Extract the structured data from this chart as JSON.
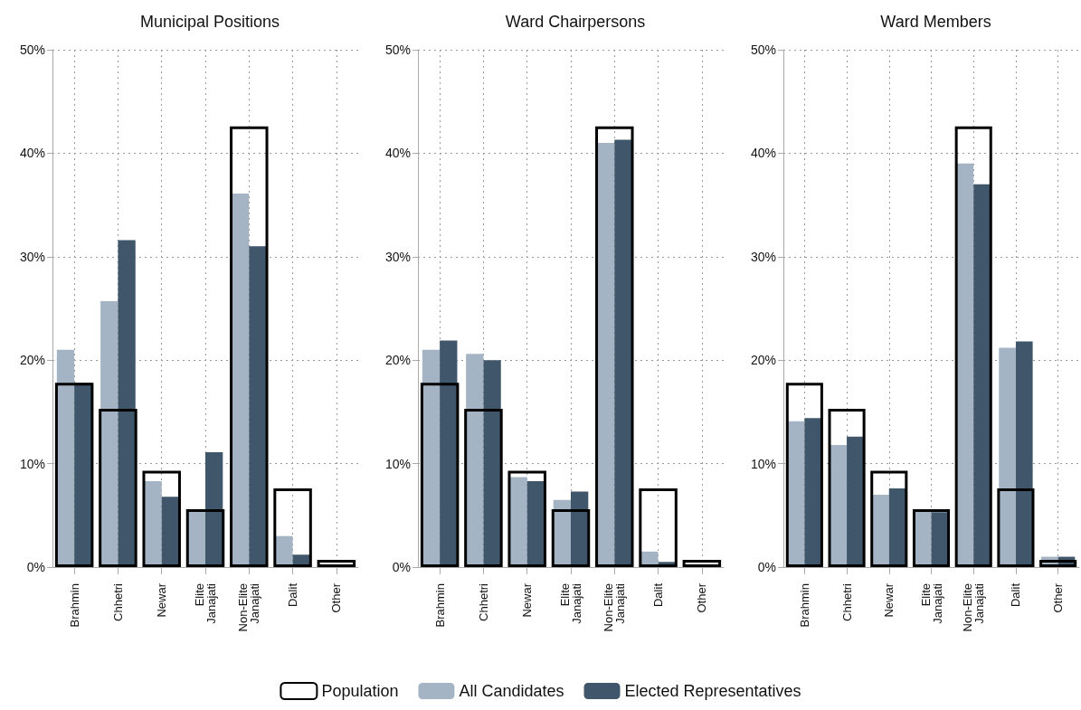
{
  "chart_data": [
    {
      "type": "bar",
      "title": "Municipal Positions",
      "categories": [
        "Brahmin",
        "Chhetri",
        "Newar",
        "Elite Janajati",
        "Non-Elite Janajati",
        "Dalit",
        "Other"
      ],
      "series": [
        {
          "color": "#000000",
          "values": [
            17.8,
            15.3,
            9.3,
            5.6,
            42.6,
            7.6,
            0.7
          ]
        },
        {
          "color": "#a5b4c4",
          "values": [
            21.0,
            25.7,
            8.3,
            5.4,
            36.1,
            3.0,
            0
          ]
        },
        {
          "color": "#40566b",
          "values": [
            17.8,
            31.6,
            6.8,
            11.1,
            31.0,
            1.2,
            0
          ]
        }
      ],
      "ylim": [
        0,
        50
      ],
      "yticks": [
        {
          "value": 0,
          "label": "0%"
        },
        {
          "value": 10,
          "label": "10%"
        },
        {
          "value": 20,
          "label": "20%"
        },
        {
          "value": 30,
          "label": "30%"
        },
        {
          "value": 40,
          "label": "40%"
        },
        {
          "value": 50,
          "label": "50%"
        }
      ],
      "grid": true,
      "legend": false
    },
    {
      "type": "bar",
      "title": "Ward Chairpersons",
      "categories": [
        "Brahmin",
        "Chhetri",
        "Newar",
        "Elite Janajati",
        "Non-Elite Janajati",
        "Dalit",
        "Other"
      ],
      "series": [
        {
          "name": "Population",
          "color": "#000000",
          "values": [
            17.8,
            15.3,
            9.3,
            5.6,
            42.6,
            7.6,
            0.7
          ]
        },
        {
          "name": "All Candidates",
          "color": "#a5b4c4",
          "values": [
            21.0,
            20.6,
            8.7,
            6.5,
            41.0,
            1.5,
            0
          ]
        },
        {
          "name": "Elected Representatives",
          "color": "#40566b",
          "values": [
            21.9,
            20.0,
            8.3,
            7.3,
            41.3,
            0.5,
            0
          ]
        }
      ],
      "ylim": [
        0,
        50
      ],
      "yticks": [
        {
          "value": 0,
          "label": "0%"
        },
        {
          "value": 10,
          "label": "10%"
        },
        {
          "value": 20,
          "label": "20%"
        },
        {
          "value": 30,
          "label": "30%"
        },
        {
          "value": 40,
          "label": "40%"
        },
        {
          "value": 50,
          "label": "50%"
        }
      ],
      "grid": true,
      "legend": "bottom"
    },
    {
      "type": "bar",
      "title": "Ward Members",
      "categories": [
        "Brahmin",
        "Chhetri",
        "Newar",
        "Elite Janajati",
        "Non-Elite Janajati",
        "Dalit",
        "Other"
      ],
      "series": [
        {
          "color": "#000000",
          "values": [
            17.8,
            15.3,
            9.3,
            5.6,
            42.6,
            7.6,
            0.7
          ]
        },
        {
          "color": "#a5b4c4",
          "values": [
            14.1,
            11.8,
            7.0,
            5.4,
            39.0,
            21.2,
            1.0
          ]
        },
        {
          "color": "#40566b",
          "values": [
            14.4,
            12.6,
            7.6,
            5.3,
            37.0,
            21.8,
            1.0
          ]
        }
      ],
      "ylim": [
        0,
        50
      ],
      "yticks": [
        {
          "value": 0,
          "label": "0%"
        },
        {
          "value": 10,
          "label": "10%"
        },
        {
          "value": 20,
          "label": "20%"
        },
        {
          "value": 30,
          "label": "30%"
        },
        {
          "value": 40,
          "label": "40%"
        },
        {
          "value": 50,
          "label": "50%"
        }
      ],
      "grid": true,
      "legend": false
    }
  ]
}
